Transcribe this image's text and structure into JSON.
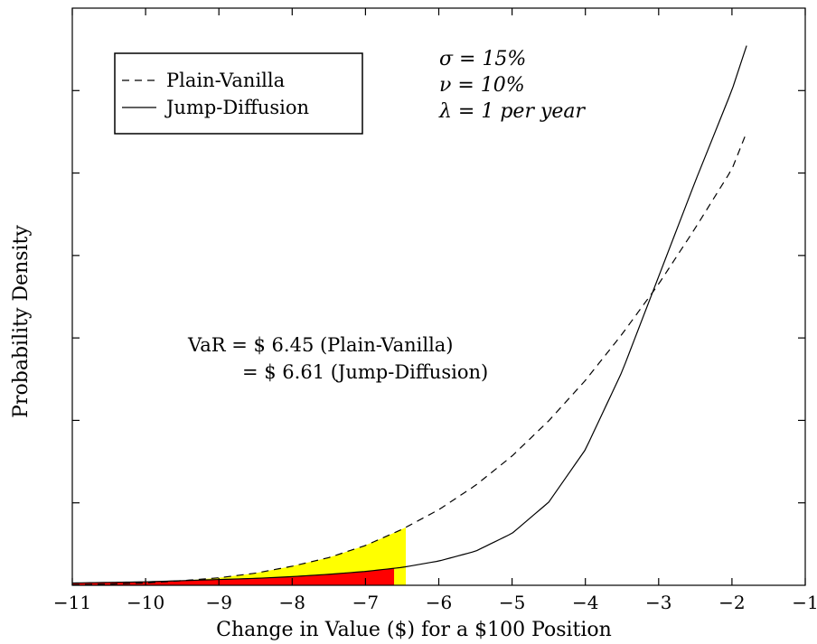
{
  "chart_data": {
    "type": "line",
    "title": "",
    "xlabel": "Change in Value ($) for a $100 Position",
    "ylabel": "Probability Density",
    "xlim": [
      -11,
      -1
    ],
    "ylim": [
      0,
      1
    ],
    "x_ticks": [
      -11,
      -10,
      -9,
      -8,
      -7,
      -6,
      -5,
      -4,
      -3,
      -2,
      -1
    ],
    "x_tick_labels": [
      "−11",
      "−10",
      "−9",
      "−8",
      "−7",
      "−6",
      "−5",
      "−4",
      "−3",
      "−2",
      "−1"
    ],
    "y_ticks_count": 6,
    "grid": false,
    "legend": {
      "placement": "top-left",
      "entries": [
        {
          "label": "Plain-Vanilla",
          "style": "dashed"
        },
        {
          "label": "Jump-Diffusion",
          "style": "solid"
        }
      ]
    },
    "series": [
      {
        "name": "Plain-Vanilla",
        "style": "dashed",
        "x": [
          -11,
          -10.5,
          -10,
          -9.5,
          -9,
          -8.5,
          -8,
          -7.5,
          -7,
          -6.5,
          -6,
          -5.5,
          -5,
          -4.5,
          -4,
          -3.5,
          -3,
          -2.5,
          -2,
          -1.8
        ],
        "y": [
          0.001,
          0.002,
          0.004,
          0.008,
          0.013,
          0.021,
          0.033,
          0.048,
          0.069,
          0.097,
          0.131,
          0.173,
          0.224,
          0.285,
          0.355,
          0.435,
          0.522,
          0.619,
          0.721,
          0.785
        ]
      },
      {
        "name": "Jump-Diffusion",
        "style": "solid",
        "x": [
          -11,
          -10.5,
          -10,
          -9.5,
          -9,
          -8.5,
          -8,
          -7.5,
          -7,
          -6.5,
          -6,
          -5.5,
          -5,
          -4.5,
          -4,
          -3.5,
          -3,
          -2.5,
          -2,
          -1.8
        ],
        "y": [
          0.004,
          0.005,
          0.006,
          0.008,
          0.01,
          0.012,
          0.015,
          0.019,
          0.024,
          0.031,
          0.042,
          0.059,
          0.09,
          0.144,
          0.235,
          0.37,
          0.535,
          0.7,
          0.858,
          0.935
        ]
      }
    ],
    "shaded_regions": [
      {
        "series": "Plain-Vanilla",
        "from": -11,
        "to": -6.45,
        "color": "#ffff00"
      },
      {
        "series": "Jump-Diffusion",
        "from": -11,
        "to": -6.61,
        "color": "#ff0000"
      }
    ],
    "annotations": {
      "params": [
        "σ = 15%",
        "ν = 10%",
        "λ = 1 per year"
      ],
      "var_line1": "VaR = $ 6.45 (Plain-Vanilla)",
      "var_line2": "= $ 6.61 (Jump-Diffusion)"
    }
  },
  "colors": {
    "yellow_fill": "#ffff00",
    "red_fill": "#ff0000",
    "line": "#000000"
  }
}
